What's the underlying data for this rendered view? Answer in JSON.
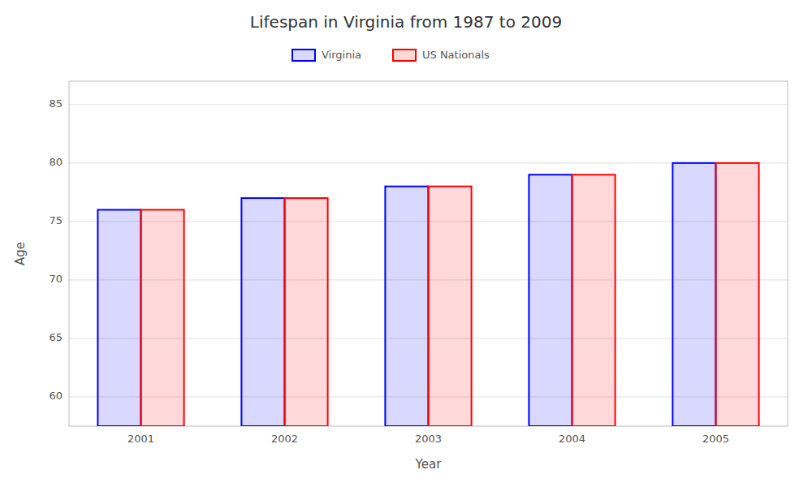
{
  "chart_data": {
    "type": "bar",
    "title": "Lifespan in Virginia from 1987 to 2009",
    "xlabel": "Year",
    "ylabel": "Age",
    "categories": [
      "2001",
      "2002",
      "2003",
      "2004",
      "2005"
    ],
    "series": [
      {
        "name": "Virginia",
        "color": "#0000ff",
        "values": [
          76,
          77,
          78,
          79,
          80
        ]
      },
      {
        "name": "US Nationals",
        "color": "#ff0000",
        "values": [
          76,
          77,
          78,
          79,
          80
        ]
      }
    ],
    "ylim": [
      57.5,
      87
    ],
    "yticks": [
      60,
      65,
      70,
      75,
      80,
      85
    ],
    "grid": true,
    "legend": "top"
  }
}
